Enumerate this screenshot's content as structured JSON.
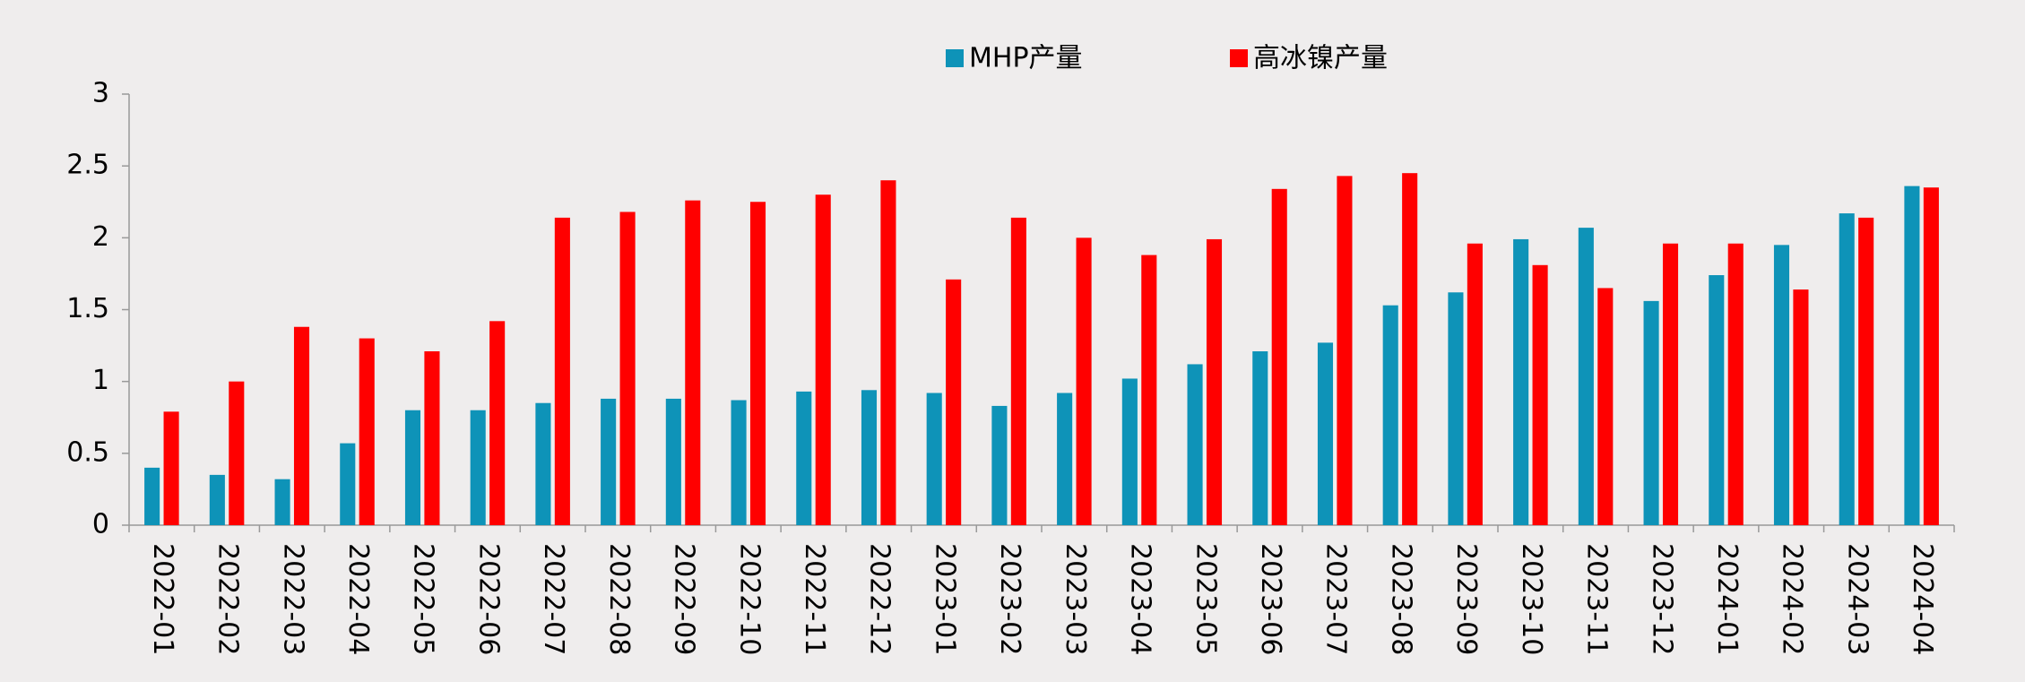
{
  "chart_data": {
    "type": "bar",
    "categories": [
      "2022-01",
      "2022-02",
      "2022-03",
      "2022-04",
      "2022-05",
      "2022-06",
      "2022-07",
      "2022-08",
      "2022-09",
      "2022-10",
      "2022-11",
      "2022-12",
      "2023-01",
      "2023-02",
      "2023-03",
      "2023-04",
      "2023-05",
      "2023-06",
      "2023-07",
      "2023-08",
      "2023-09",
      "2023-10",
      "2023-11",
      "2023-12",
      "2024-01",
      "2024-02",
      "2024-03",
      "2024-04"
    ],
    "series": [
      {
        "name": "MHP产量",
        "color": "#0e93b8",
        "values": [
          0.4,
          0.35,
          0.32,
          0.57,
          0.8,
          0.8,
          0.85,
          0.88,
          0.88,
          0.87,
          0.93,
          0.94,
          0.92,
          0.83,
          0.92,
          1.02,
          1.12,
          1.21,
          1.27,
          1.53,
          1.62,
          1.99,
          2.07,
          1.56,
          1.74,
          1.95,
          2.17,
          2.36
        ]
      },
      {
        "name": "高冰镍产量",
        "color": "#ff0000",
        "values": [
          0.79,
          1.0,
          1.38,
          1.3,
          1.21,
          1.42,
          2.14,
          2.18,
          2.26,
          2.25,
          2.3,
          2.4,
          1.71,
          2.14,
          2.0,
          1.88,
          1.99,
          2.34,
          2.43,
          2.45,
          1.96,
          1.81,
          1.65,
          1.96,
          1.96,
          1.64,
          2.14,
          2.35
        ]
      }
    ],
    "ylim": [
      0,
      3
    ],
    "yticks": [
      0,
      0.5,
      1,
      1.5,
      2,
      2.5,
      3
    ],
    "grid": false,
    "legend": "top"
  }
}
